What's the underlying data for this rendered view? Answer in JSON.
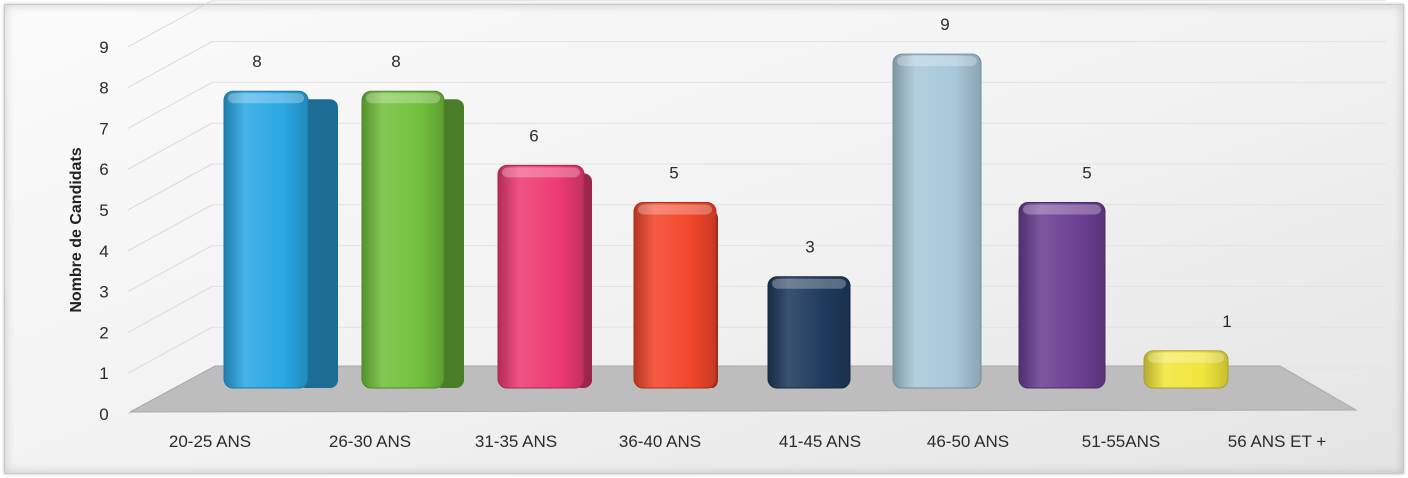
{
  "chart_data": {
    "type": "bar",
    "title": "",
    "xlabel": "",
    "ylabel": "Nombre de Candidats",
    "ylim": [
      0,
      9
    ],
    "yticks": [
      0,
      1,
      2,
      3,
      4,
      5,
      6,
      7,
      8,
      9
    ],
    "grid": true,
    "categories": [
      "20-25 ANS",
      "26-30 ANS",
      "31-35 ANS",
      "36-40 ANS",
      "41-45 ANS",
      "46-50 ANS",
      "51-55ANS",
      "56 ANS ET +"
    ],
    "values": [
      8,
      8,
      6,
      5,
      3,
      9,
      5,
      1
    ],
    "data_labels": [
      "8",
      "8",
      "6",
      "5",
      "3",
      "9",
      "5",
      "1"
    ],
    "colors": [
      "#2aa8e4",
      "#72c13c",
      "#ee3b73",
      "#f2462a",
      "#1e3a5c",
      "#a8c8da",
      "#6b3f92",
      "#f1e63c"
    ]
  }
}
